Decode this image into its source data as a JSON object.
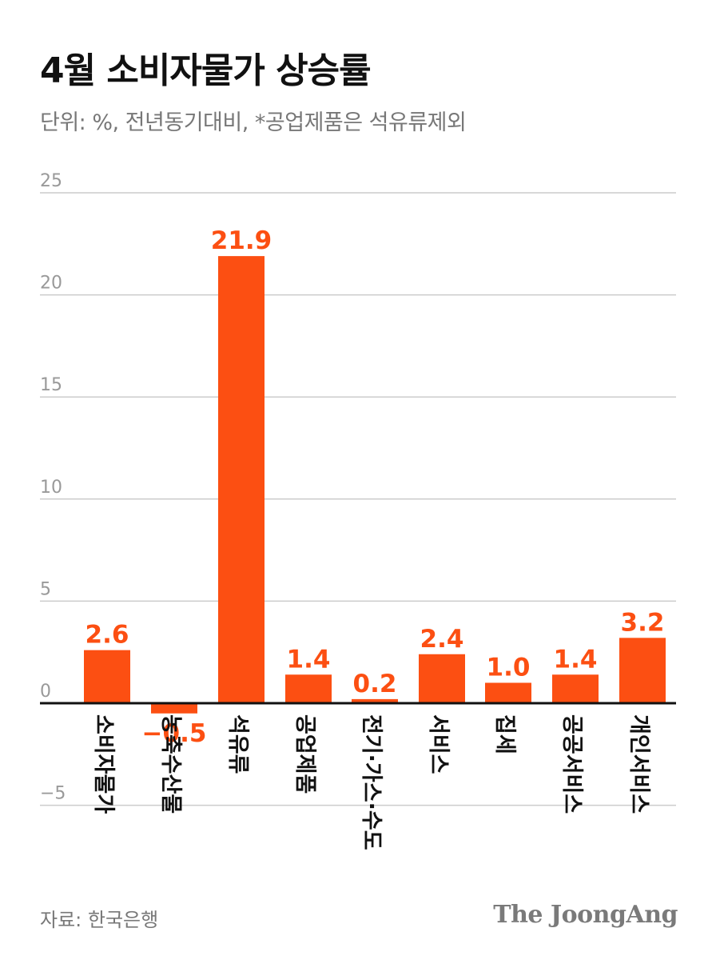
{
  "header": {
    "title": "4월 소비자물가 상승률",
    "subtitle": "단위: %, 전년동기대비, *공업제품은 석유류제외"
  },
  "footer": {
    "source": "자료: 한국은행",
    "brand": "The JoongAng"
  },
  "colors": {
    "bar": "#fc4f12",
    "label": "#fc4f12",
    "grid": "#cccccc",
    "axis": "#111111",
    "tick": "#999999"
  },
  "chart_data": {
    "type": "bar",
    "title": "4월 소비자물가 상승률",
    "ylabel": "",
    "xlabel": "",
    "ylim": [
      -5,
      25
    ],
    "yticks": [
      25,
      20,
      15,
      10,
      5,
      0,
      -5
    ],
    "grid": true,
    "categories": [
      "소비자물가",
      "농축수산물",
      "석유류",
      "공업제품",
      "전기·가스·수도",
      "서비스",
      "집세",
      "공공서비스",
      "개인서비스"
    ],
    "values": [
      2.6,
      -0.5,
      21.9,
      1.4,
      0.2,
      2.4,
      1.0,
      1.4,
      3.2
    ],
    "value_labels": [
      "2.6",
      "−0.5",
      "21.9",
      "1.4",
      "0.2",
      "2.4",
      "1.0",
      "1.4",
      "3.2"
    ]
  }
}
